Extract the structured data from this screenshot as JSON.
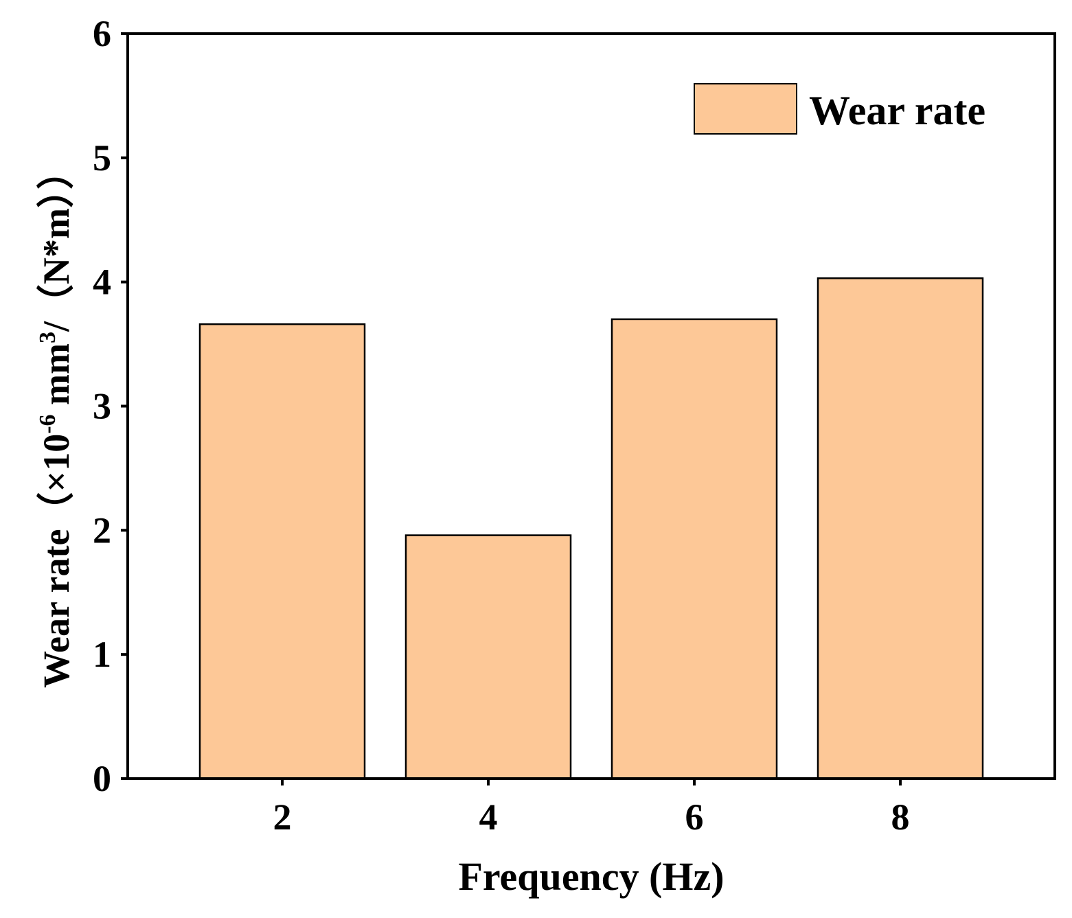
{
  "chart_data": {
    "type": "bar",
    "title": "",
    "xlabel": "Frequency (Hz)",
    "ylabel": {
      "prefix": "Wear rate（×10",
      "exp1": "-6",
      "mid": " mm",
      "exp2": "3",
      "suffix": "/（N*m））"
    },
    "categories": [
      "2",
      "4",
      "6",
      "8"
    ],
    "series": [
      {
        "name": "Wear rate",
        "values": [
          3.66,
          1.96,
          3.7,
          4.03
        ]
      }
    ],
    "ylim": [
      0,
      6
    ],
    "yticks": [
      "0",
      "1",
      "2",
      "3",
      "4",
      "5",
      "6"
    ],
    "legend_position": "top-right",
    "grid": false,
    "colors": {
      "bar": "#FDC897",
      "edge": "#000000"
    }
  }
}
